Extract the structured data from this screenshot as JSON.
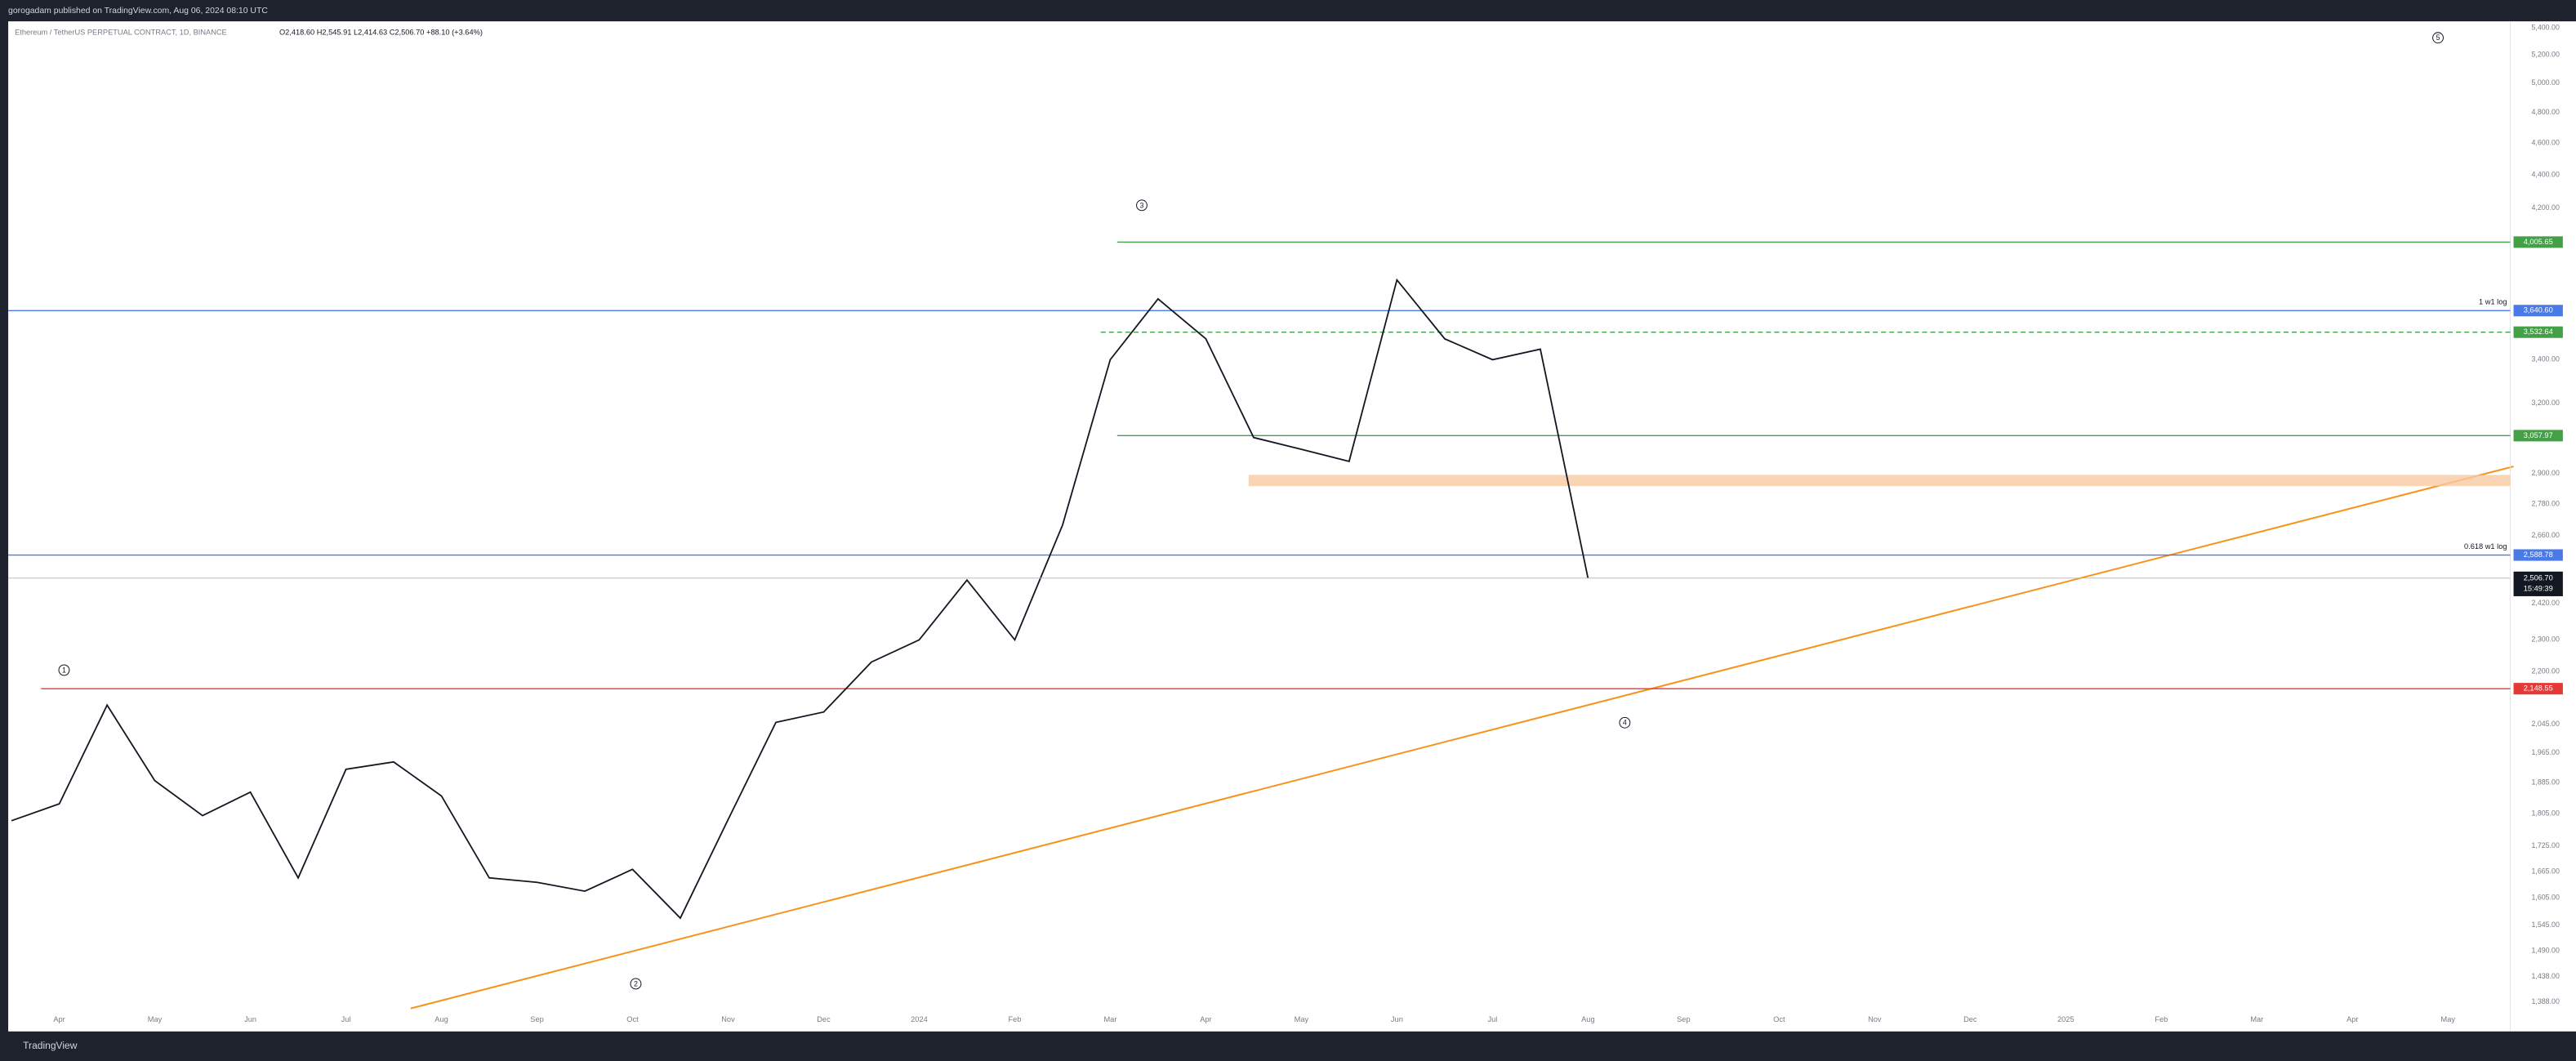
{
  "header": {
    "publisher": "gorogadam published on TradingView.com, Aug 06, 2024 08:10 UTC",
    "symbol": "Ethereum / TetherUS PERPETUAL CONTRACT, 1D, BINANCE",
    "ohlc": "O2,418.60 H2,545.91 L2,414.63 C2,506.70 +88.10 (+3.64%)"
  },
  "footer": {
    "brand": "TradingView"
  },
  "chart_data": {
    "type": "line",
    "log_scale": true,
    "grid": false,
    "categories": [
      null,
      "Apr",
      null,
      "May",
      null,
      "Jun",
      null,
      "Jul",
      null,
      "Aug",
      null,
      "Sep",
      null,
      "Oct",
      null,
      "Nov",
      null,
      "Dec",
      null,
      "2024",
      null,
      "Feb",
      null,
      "Mar",
      null,
      "Apr",
      null,
      "May",
      null,
      "Jun",
      null,
      "Jul",
      null,
      "Aug",
      null,
      "Sep",
      null,
      "Oct",
      null,
      "Nov",
      null,
      "Dec",
      null,
      "2025",
      null,
      "Feb",
      null,
      "Mar",
      null,
      "Apr",
      null,
      "May"
    ],
    "series": [
      {
        "name": "ETHUSDT",
        "color": "#131722",
        "values": [
          1787,
          1830,
          2100,
          1890,
          1800,
          1860,
          1650,
          1920,
          1940,
          1850,
          1650,
          1640,
          1620,
          1670,
          1560,
          1790,
          2050,
          2080,
          2230,
          2300,
          2500,
          2300,
          2700,
          3400,
          3700,
          3500,
          3050,
          3000,
          2950,
          3800,
          3500,
          3400,
          3450,
          2506.7,
          null,
          null,
          null,
          null,
          null,
          null,
          null,
          null,
          null,
          null,
          null,
          null,
          null,
          null,
          null,
          null,
          null,
          null
        ]
      }
    ],
    "ylim": [
      1332,
      5450
    ],
    "yticks": [
      {
        "value": 5400,
        "label": "5,400.00"
      },
      {
        "value": 5200,
        "label": "5,200.00"
      },
      {
        "value": 5000,
        "label": "5,000.00"
      },
      {
        "value": 4800,
        "label": "4,800.00"
      },
      {
        "value": 4600,
        "label": "4,600.00"
      },
      {
        "value": 4400,
        "label": "4,400.00"
      },
      {
        "value": 4200,
        "label": "4,200.00"
      },
      {
        "value": 3400,
        "label": "3,400.00"
      },
      {
        "value": 3200,
        "label": "3,200.00"
      },
      {
        "value": 2900,
        "label": "2,900.00"
      },
      {
        "value": 2780,
        "label": "2,780.00"
      },
      {
        "value": 2660,
        "label": "2,660.00"
      },
      {
        "value": 2420,
        "label": "2,420.00"
      },
      {
        "value": 2300,
        "label": "2,300.00"
      },
      {
        "value": 2200,
        "label": "2,200.00"
      },
      {
        "value": 2045,
        "label": "2,045.00"
      },
      {
        "value": 1965,
        "label": "1,965.00"
      },
      {
        "value": 1885,
        "label": "1,885.00"
      },
      {
        "value": 1805,
        "label": "1,805.00"
      },
      {
        "value": 1725,
        "label": "1,725.00"
      },
      {
        "value": 1665,
        "label": "1,665.00"
      },
      {
        "value": 1605,
        "label": "1,605.00"
      },
      {
        "value": 1545,
        "label": "1,545.00"
      },
      {
        "value": 1490,
        "label": "1,490.00"
      },
      {
        "value": 1438,
        "label": "1,438.00"
      },
      {
        "value": 1388,
        "label": "1,388.00"
      }
    ],
    "levels": [
      {
        "value": 4005.65,
        "label": "4,005.65",
        "color": "#43a047",
        "dashed": false
      },
      {
        "value": 3640.6,
        "label": "3,640.60",
        "color": "#4a7ae8",
        "dashed": false,
        "note": "1 w1 log"
      },
      {
        "value": 3532.64,
        "label": "3,532.64",
        "color": "#43a047",
        "dashed": true
      },
      {
        "value": 3057.97,
        "label": "3,057.97",
        "color": "#43a047",
        "dashed": false
      },
      {
        "value": 2588.78,
        "label": "2,588.78",
        "color": "#4a7ae8",
        "dashed": false,
        "note": "0.618 w1 log"
      },
      {
        "value": 2148.55,
        "label": "2,148.55",
        "color": "#e53935",
        "dashed": false
      }
    ],
    "zones": [
      {
        "from": 2850,
        "to": 2895,
        "color": "#f7c9a3"
      }
    ],
    "last_price": {
      "value": 2506.7,
      "label": "2,506.70",
      "countdown": "15:49:39"
    },
    "waves": [
      "1",
      "2",
      "3",
      "4",
      "5"
    ]
  }
}
